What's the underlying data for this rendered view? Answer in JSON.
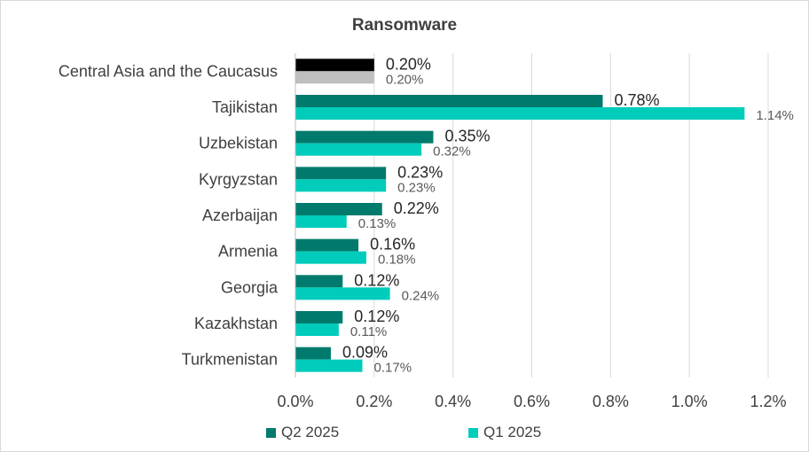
{
  "colors": {
    "q2": "#007A6C",
    "q1": "#00CCBB",
    "highlight_q2": "#000000",
    "highlight_q1": "#BFBFBF",
    "grid": "#D9D9D9",
    "text": "#404040"
  },
  "chart_data": {
    "type": "bar",
    "orientation": "horizontal",
    "title": "Ransomware",
    "xlabel": "",
    "ylabel": "",
    "xlim": [
      0,
      1.2
    ],
    "xticks": [
      0.0,
      0.2,
      0.4,
      0.6,
      0.8,
      1.0,
      1.2
    ],
    "xtick_labels": [
      "0.0%",
      "0.2%",
      "0.4%",
      "0.6%",
      "0.8%",
      "1.0%",
      "1.2%"
    ],
    "grid": "vertical",
    "legend_position": "bottom",
    "categories": [
      "Central Asia and the Caucasus",
      "Tajikistan",
      "Uzbekistan",
      "Kyrgyzstan",
      "Azerbaijan",
      "Armenia",
      "Georgia",
      "Kazakhstan",
      "Turkmenistan"
    ],
    "highlighted_category": "Central Asia and the Caucasus",
    "series": [
      {
        "name": "Q2 2025",
        "values": [
          0.2,
          0.78,
          0.35,
          0.23,
          0.22,
          0.16,
          0.12,
          0.12,
          0.09
        ],
        "labels": [
          "0.20%",
          "0.78%",
          "0.35%",
          "0.23%",
          "0.22%",
          "0.16%",
          "0.12%",
          "0.12%",
          "0.09%"
        ]
      },
      {
        "name": "Q1 2025",
        "values": [
          0.2,
          1.14,
          0.32,
          0.23,
          0.13,
          0.18,
          0.24,
          0.11,
          0.17
        ],
        "labels": [
          "0.20%",
          "1.14%",
          "0.32%",
          "0.23%",
          "0.13%",
          "0.18%",
          "0.24%",
          "0.11%",
          "0.17%"
        ]
      }
    ]
  }
}
